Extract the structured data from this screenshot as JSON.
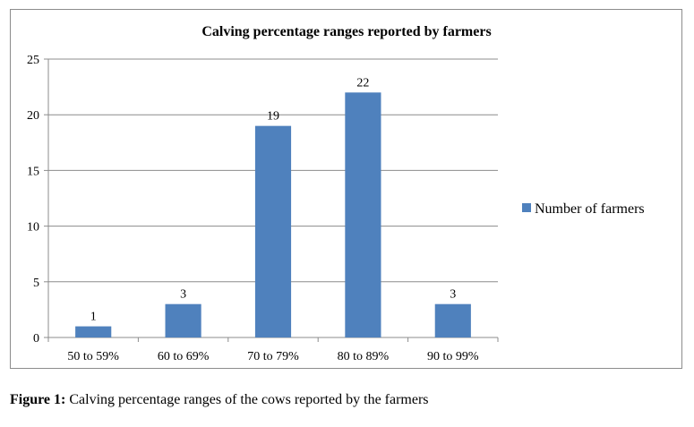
{
  "chart_data": {
    "type": "bar",
    "title": "Calving percentage ranges reported by farmers",
    "categories": [
      "50 to 59%",
      "60 to 69%",
      "70 to 79%",
      "80 to 89%",
      "90 to 99%"
    ],
    "series": [
      {
        "name": "Number of farmers",
        "values": [
          1,
          3,
          19,
          22,
          3
        ],
        "color": "#4f81bd"
      }
    ],
    "data_labels": [
      "1",
      "3",
      "19",
      "22",
      "3"
    ],
    "ylim": [
      0,
      25
    ],
    "yticks": [
      0,
      5,
      10,
      15,
      20,
      25
    ],
    "grid": true,
    "legend_position": "right"
  },
  "caption": {
    "label": "Figure 1:",
    "text": "Calving percentage ranges of the cows reported by the farmers"
  },
  "colors": {
    "bar": "#4f81bd",
    "grid": "#8c8c8c",
    "axis": "#8c8c8c"
  }
}
